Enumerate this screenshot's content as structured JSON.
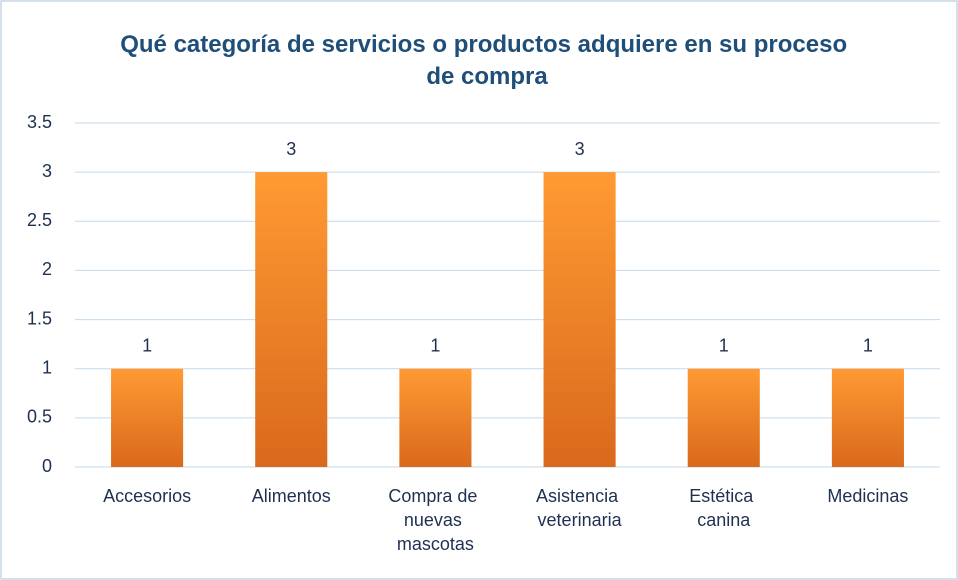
{
  "chart_data": {
    "type": "bar",
    "title": "Qué categoría de servicios o productos adquiere en su proceso de compra",
    "categories": [
      "Accesorios",
      "Alimentos",
      "Compra de nuevas mascotas",
      "Asistencia veterinaria",
      "Estética canina",
      "Medicinas"
    ],
    "values": [
      1,
      3,
      1,
      3,
      1,
      1
    ],
    "color": "#f79a3a",
    "ylim": [
      0,
      3.5
    ],
    "yticks": [
      0,
      0.5,
      1,
      1.5,
      2,
      2.5,
      3,
      3.5
    ],
    "grid": true
  }
}
